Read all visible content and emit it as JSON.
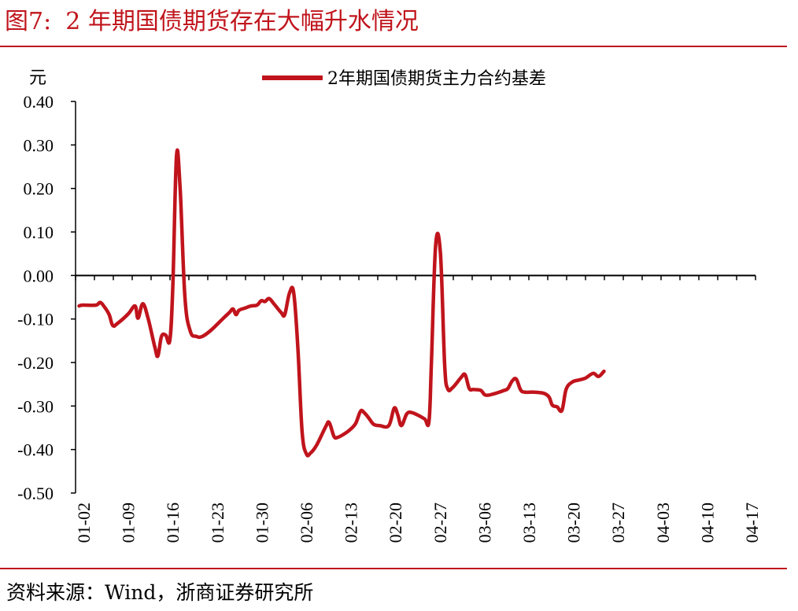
{
  "title": {
    "label": "图7:",
    "text": "2 年期国债期货存在大幅升水情况"
  },
  "source": "资料来源：Wind，浙商证券研究所",
  "colors": {
    "accent": "#C0141C",
    "series": "#C0141C"
  },
  "chart_data": {
    "type": "line",
    "ylabel": "元",
    "ylim": [
      -0.5,
      0.4
    ],
    "yticks": [
      "0.40",
      "0.30",
      "0.20",
      "0.10",
      "0.00",
      "-0.10",
      "-0.20",
      "-0.30",
      "-0.40",
      "-0.50"
    ],
    "xticks": [
      "01-02",
      "01-09",
      "01-16",
      "01-23",
      "01-30",
      "02-06",
      "02-13",
      "02-20",
      "02-27",
      "03-06",
      "03-13",
      "03-20",
      "03-27",
      "04-03",
      "04-10",
      "04-17"
    ],
    "legend": "top",
    "series": [
      {
        "name": "2年期国债期货主力合约基差",
        "color": "#C0141C",
        "points": [
          [
            0,
            -0.07
          ],
          [
            0.6,
            -0.068
          ],
          [
            2.8,
            -0.068
          ],
          [
            3.5,
            -0.062
          ],
          [
            4.2,
            -0.072
          ],
          [
            5,
            -0.09
          ],
          [
            5.6,
            -0.115
          ],
          [
            6.4,
            -0.11
          ],
          [
            8.2,
            -0.088
          ],
          [
            9.3,
            -0.07
          ],
          [
            9.8,
            -0.098
          ],
          [
            10.6,
            -0.065
          ],
          [
            11.5,
            -0.1
          ],
          [
            12.6,
            -0.165
          ],
          [
            13.1,
            -0.185
          ],
          [
            13.7,
            -0.14
          ],
          [
            14.4,
            -0.137
          ],
          [
            15.1,
            -0.148
          ],
          [
            15.6,
            -0.02
          ],
          [
            16.2,
            0.275
          ],
          [
            16.8,
            0.2
          ],
          [
            17.6,
            -0.05
          ],
          [
            18.5,
            -0.128
          ],
          [
            19.5,
            -0.14
          ],
          [
            20.5,
            -0.14
          ],
          [
            22,
            -0.125
          ],
          [
            24,
            -0.098
          ],
          [
            25,
            -0.085
          ],
          [
            25.6,
            -0.077
          ],
          [
            26.1,
            -0.09
          ],
          [
            26.6,
            -0.08
          ],
          [
            27.6,
            -0.075
          ],
          [
            28.6,
            -0.07
          ],
          [
            29.6,
            -0.068
          ],
          [
            30.3,
            -0.058
          ],
          [
            30.9,
            -0.06
          ],
          [
            31.6,
            -0.053
          ],
          [
            32.4,
            -0.065
          ],
          [
            33.6,
            -0.085
          ],
          [
            34.2,
            -0.09
          ],
          [
            35,
            -0.04
          ],
          [
            35.7,
            -0.04
          ],
          [
            36.4,
            -0.17
          ],
          [
            37.1,
            -0.36
          ],
          [
            37.8,
            -0.41
          ],
          [
            38.5,
            -0.408
          ],
          [
            39.5,
            -0.39
          ],
          [
            41,
            -0.348
          ],
          [
            41.6,
            -0.338
          ],
          [
            42.4,
            -0.37
          ],
          [
            43,
            -0.372
          ],
          [
            44,
            -0.365
          ],
          [
            45,
            -0.355
          ],
          [
            46,
            -0.34
          ],
          [
            46.8,
            -0.312
          ],
          [
            47.4,
            -0.315
          ],
          [
            48.2,
            -0.328
          ],
          [
            49,
            -0.342
          ],
          [
            50,
            -0.345
          ],
          [
            51.5,
            -0.345
          ],
          [
            52.4,
            -0.305
          ],
          [
            53,
            -0.32
          ],
          [
            53.6,
            -0.345
          ],
          [
            54.5,
            -0.318
          ],
          [
            55.3,
            -0.315
          ],
          [
            56.5,
            -0.322
          ],
          [
            57.5,
            -0.33
          ],
          [
            58.2,
            -0.335
          ],
          [
            58.6,
            -0.2
          ],
          [
            59.3,
            0.07
          ],
          [
            60.1,
            0.05
          ],
          [
            60.8,
            -0.205
          ],
          [
            61.3,
            -0.26
          ],
          [
            62.1,
            -0.258
          ],
          [
            63.5,
            -0.235
          ],
          [
            64.2,
            -0.228
          ],
          [
            64.9,
            -0.26
          ],
          [
            65.6,
            -0.262
          ],
          [
            66.8,
            -0.264
          ],
          [
            67.6,
            -0.275
          ],
          [
            69,
            -0.272
          ],
          [
            70.5,
            -0.265
          ],
          [
            71.3,
            -0.26
          ],
          [
            72,
            -0.243
          ],
          [
            72.7,
            -0.238
          ],
          [
            73.4,
            -0.262
          ],
          [
            74,
            -0.268
          ],
          [
            75.4,
            -0.268
          ],
          [
            76.5,
            -0.269
          ],
          [
            77.5,
            -0.272
          ],
          [
            78.2,
            -0.28
          ],
          [
            78.7,
            -0.298
          ],
          [
            79.5,
            -0.302
          ],
          [
            80.3,
            -0.31
          ],
          [
            81,
            -0.262
          ],
          [
            82,
            -0.245
          ],
          [
            83.2,
            -0.24
          ],
          [
            84.2,
            -0.236
          ],
          [
            85.5,
            -0.225
          ],
          [
            86.4,
            -0.232
          ],
          [
            87.3,
            -0.22
          ]
        ]
      }
    ]
  }
}
